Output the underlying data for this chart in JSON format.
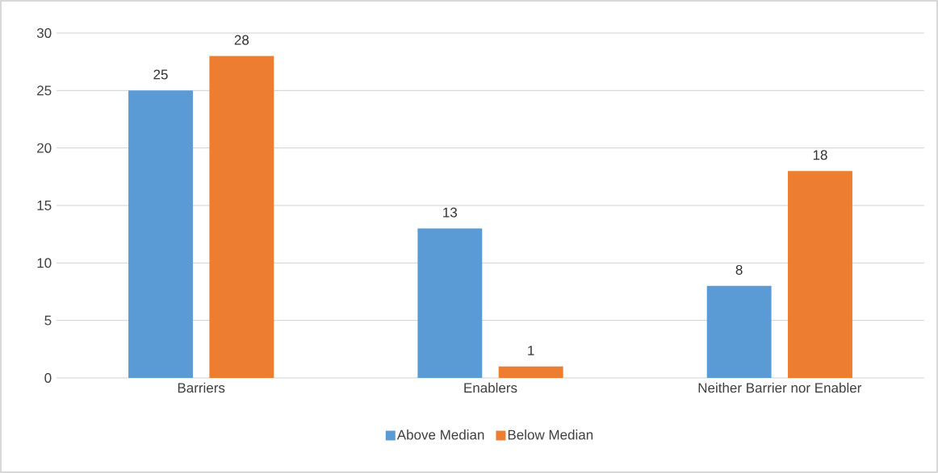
{
  "chart_data": {
    "type": "bar",
    "categories": [
      "Barriers",
      "Enablers",
      "Neither Barrier nor Enabler"
    ],
    "series": [
      {
        "name": "Above Median",
        "color": "#5b9bd5",
        "values": [
          25,
          13,
          8
        ]
      },
      {
        "name": "Below Median",
        "color": "#ed7d31",
        "values": [
          28,
          1,
          18
        ]
      }
    ],
    "ylim": [
      0,
      30
    ],
    "yticks": [
      0,
      5,
      10,
      15,
      20,
      25,
      30
    ],
    "grid": "y",
    "legend": "bottom",
    "data_labels": true
  }
}
